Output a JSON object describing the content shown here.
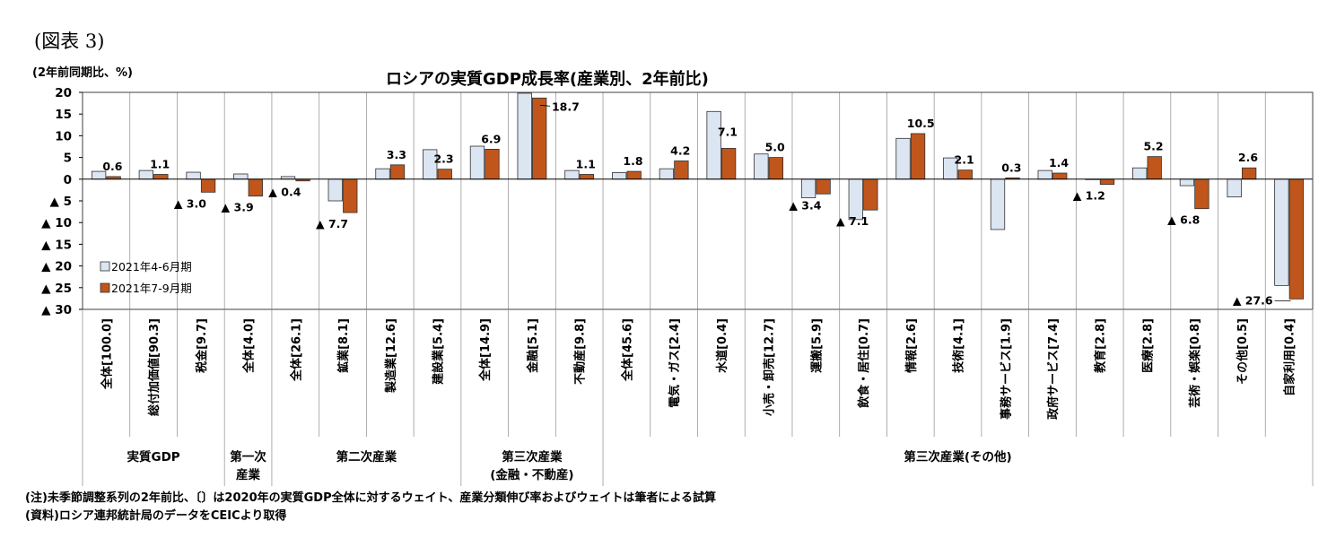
{
  "figure_label": "(図表 3)",
  "unit_label": "(2年前同期比、%)",
  "notes": {
    "note": "(注)未季節調整系列の2年前比、〔〕は2020年の実質GDP全体に対するウェイト、産業分類伸び率およびウェイトは筆者による試算",
    "source": "(資料)ロシア連邦統計局のデータをCEICより取得"
  },
  "colors": {
    "series1": "#dce6f2",
    "series2": "#c0561c",
    "border": "#404040",
    "grid": "#9a9a9a"
  },
  "chart_data": {
    "type": "bar",
    "title": "ロシアの実質GDP成長率(産業別、2年前比)",
    "ylabel": "(2年前同期比、%)",
    "ylim": [
      -30,
      20
    ],
    "y_ticks": [
      {
        "value": 20,
        "label": "20"
      },
      {
        "value": 15,
        "label": "15"
      },
      {
        "value": 10,
        "label": "10"
      },
      {
        "value": 5,
        "label": "5"
      },
      {
        "value": 0,
        "label": "0"
      },
      {
        "value": -5,
        "label": "▲ 5"
      },
      {
        "value": -10,
        "label": "▲ 10"
      },
      {
        "value": -15,
        "label": "▲ 15"
      },
      {
        "value": -20,
        "label": "▲ 20"
      },
      {
        "value": -25,
        "label": "▲ 25"
      },
      {
        "value": -30,
        "label": "▲ 30"
      }
    ],
    "categories": [
      "全体[100.0]",
      "総付加価値[90.3]",
      "税金[9.7]",
      "全体[4.0]",
      "全体[26.1]",
      "鉱業[8.1]",
      "製造業[12.6]",
      "建設業[5.4]",
      "全体[14.9]",
      "金融[5.1]",
      "不動産[9.8]",
      "全体[45.6]",
      "電気・ガス[2.4]",
      "水道[0.4]",
      "小売・卸売[12.7]",
      "運搬[5.9]",
      "飲食・居住[0.7]",
      "情報[2.6]",
      "技術[4.1]",
      "事務サービス[1.9]",
      "政府サービス[7.4]",
      "教育[2.8]",
      "医療[2.8]",
      "芸術・娯楽[0.8]",
      "その他[0.5]",
      "自家利用[0.4]"
    ],
    "series": [
      {
        "name": "2021年4-6月期",
        "values": [
          1.8,
          2.0,
          1.6,
          1.2,
          0.6,
          -5.0,
          2.4,
          6.8,
          7.6,
          19.8,
          2.0,
          1.5,
          2.4,
          15.6,
          5.8,
          -4.3,
          -9.3,
          9.4,
          4.9,
          -11.6,
          2.0,
          0.0,
          2.6,
          -1.5,
          -4.1,
          -24.5
        ]
      },
      {
        "name": "2021年7-9月期",
        "values": [
          0.6,
          1.1,
          -3.0,
          -3.9,
          -0.4,
          -7.7,
          3.3,
          2.3,
          6.9,
          18.7,
          1.1,
          1.8,
          4.2,
          7.1,
          5.0,
          -3.4,
          -7.1,
          10.5,
          2.1,
          0.3,
          1.4,
          -1.2,
          5.2,
          -6.8,
          2.6,
          -27.6
        ]
      }
    ],
    "data_labels": [
      {
        "index": 0,
        "text": "0.6"
      },
      {
        "index": 1,
        "text": "1.1"
      },
      {
        "index": 2,
        "text": "▲ 3.0"
      },
      {
        "index": 3,
        "text": "▲ 3.9"
      },
      {
        "index": 4,
        "text": "▲ 0.4"
      },
      {
        "index": 5,
        "text": "▲ 7.7"
      },
      {
        "index": 6,
        "text": "3.3"
      },
      {
        "index": 7,
        "text": "2.3"
      },
      {
        "index": 8,
        "text": "6.9"
      },
      {
        "index": 9,
        "text": "18.7"
      },
      {
        "index": 10,
        "text": "1.1"
      },
      {
        "index": 11,
        "text": "1.8"
      },
      {
        "index": 12,
        "text": "4.2"
      },
      {
        "index": 13,
        "text": "7.1"
      },
      {
        "index": 14,
        "text": "5.0"
      },
      {
        "index": 15,
        "text": "▲ 3.4"
      },
      {
        "index": 16,
        "text": "▲ 7.1"
      },
      {
        "index": 17,
        "text": "10.5"
      },
      {
        "index": 18,
        "text": "2.1"
      },
      {
        "index": 19,
        "text": "0.3"
      },
      {
        "index": 20,
        "text": "1.4"
      },
      {
        "index": 21,
        "text": "▲ 1.2"
      },
      {
        "index": 22,
        "text": "5.2"
      },
      {
        "index": 23,
        "text": "▲ 6.8"
      },
      {
        "index": 24,
        "text": "2.6"
      },
      {
        "index": 25,
        "text": "▲ 27.6"
      }
    ],
    "groups": [
      {
        "label": "実質GDP",
        "from": 0,
        "to": 2
      },
      {
        "label": "第一次\n産業",
        "from": 3,
        "to": 3
      },
      {
        "label": "第二次産業",
        "from": 4,
        "to": 7
      },
      {
        "label": "第三次産業\n(金融・不動産)",
        "from": 8,
        "to": 10
      },
      {
        "label": "第三次産業(その他)",
        "from": 11,
        "to": 25
      }
    ],
    "grid": "vertical separators between categories",
    "legend": "left, inside plot area"
  }
}
